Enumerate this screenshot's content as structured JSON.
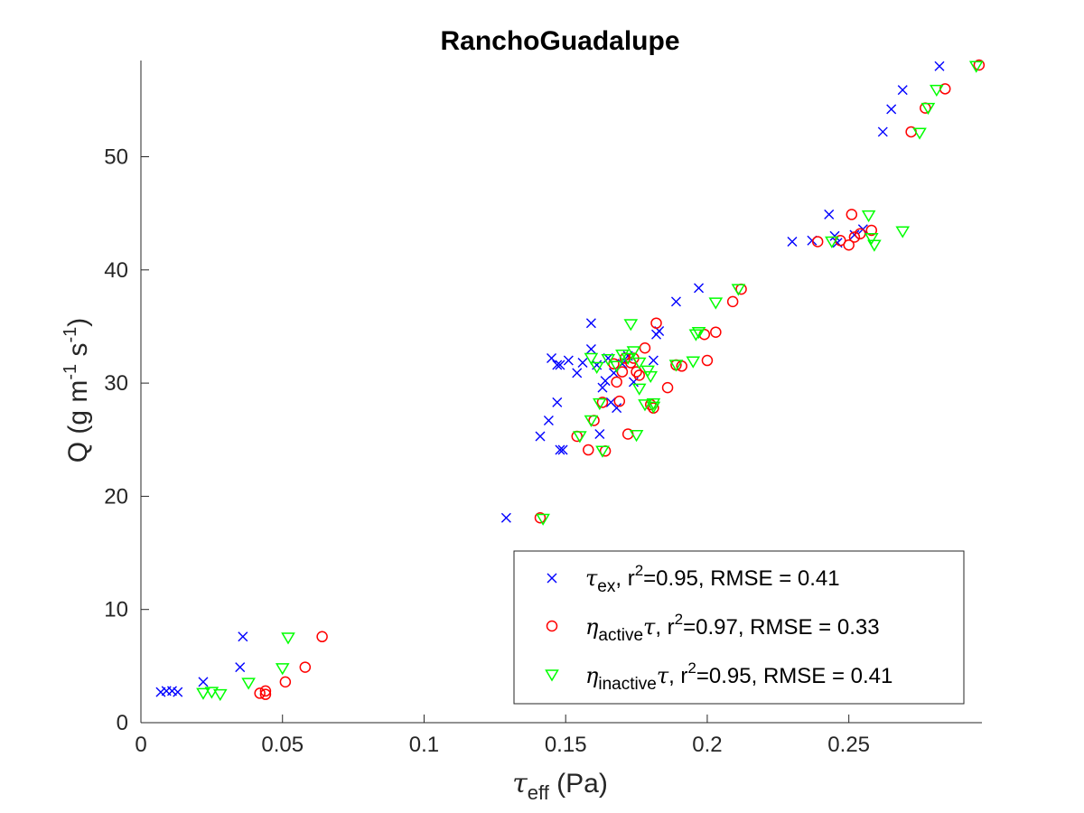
{
  "chart_data": {
    "type": "scatter",
    "title": "RanchoGuadalupe",
    "xlabel": {
      "symbol": "τ",
      "sub": "eff",
      "unit": " (Pa)"
    },
    "ylabel": {
      "pre": "Q (g m",
      "sup1": "-1",
      "mid": " s",
      "sup2": "-1",
      "post": ")"
    },
    "xlim": [
      0,
      0.297
    ],
    "ylim": [
      0,
      58.5
    ],
    "xticks": [
      0,
      0.05,
      0.1,
      0.15,
      0.2,
      0.25
    ],
    "xtick_labels": [
      "0",
      "0.05",
      "0.1",
      "0.15",
      "0.2",
      "0.25"
    ],
    "yticks": [
      0,
      10,
      20,
      30,
      40,
      50
    ],
    "ytick_labels": [
      "0",
      "10",
      "20",
      "30",
      "40",
      "50"
    ],
    "legend_position": "bottom-right",
    "series": [
      {
        "marker": "x",
        "color": "#0000ff",
        "legend": {
          "symbol": "τ",
          "sub": "ex",
          "text1": ", r",
          "sup": "2",
          "text2": "=0.95, RMSE = 0.41"
        },
        "points": [
          [
            0.007,
            2.7
          ],
          [
            0.009,
            2.8
          ],
          [
            0.011,
            2.8
          ],
          [
            0.013,
            2.7
          ],
          [
            0.022,
            3.6
          ],
          [
            0.035,
            4.9
          ],
          [
            0.036,
            7.6
          ],
          [
            0.129,
            18.1
          ],
          [
            0.141,
            25.3
          ],
          [
            0.144,
            26.7
          ],
          [
            0.147,
            28.3
          ],
          [
            0.148,
            24.1
          ],
          [
            0.149,
            24.1
          ],
          [
            0.145,
            32.2
          ],
          [
            0.147,
            31.6
          ],
          [
            0.148,
            31.6
          ],
          [
            0.151,
            32.0
          ],
          [
            0.154,
            30.9
          ],
          [
            0.156,
            31.8
          ],
          [
            0.159,
            35.3
          ],
          [
            0.159,
            33.0
          ],
          [
            0.161,
            31.6
          ],
          [
            0.162,
            25.5
          ],
          [
            0.163,
            29.6
          ],
          [
            0.164,
            30.2
          ],
          [
            0.165,
            32.2
          ],
          [
            0.166,
            28.3
          ],
          [
            0.167,
            30.9
          ],
          [
            0.168,
            27.8
          ],
          [
            0.17,
            31.7
          ],
          [
            0.172,
            32.4
          ],
          [
            0.174,
            30.1
          ],
          [
            0.181,
            32.0
          ],
          [
            0.182,
            34.3
          ],
          [
            0.183,
            34.6
          ],
          [
            0.189,
            37.2
          ],
          [
            0.197,
            38.4
          ],
          [
            0.23,
            42.5
          ],
          [
            0.237,
            42.6
          ],
          [
            0.243,
            44.9
          ],
          [
            0.245,
            43.0
          ],
          [
            0.246,
            42.4
          ],
          [
            0.252,
            43.1
          ],
          [
            0.255,
            43.6
          ],
          [
            0.262,
            52.2
          ],
          [
            0.265,
            54.2
          ],
          [
            0.269,
            55.9
          ],
          [
            0.282,
            58.0
          ]
        ]
      },
      {
        "marker": "o",
        "color": "#ff0000",
        "legend": {
          "symbol": "η",
          "sub": "active",
          "after": "τ",
          "text1": ", r",
          "sup": "2",
          "text2": "=0.97, RMSE = 0.33"
        },
        "points": [
          [
            0.042,
            2.6
          ],
          [
            0.044,
            2.8
          ],
          [
            0.044,
            2.5
          ],
          [
            0.051,
            3.6
          ],
          [
            0.058,
            4.9
          ],
          [
            0.064,
            7.6
          ],
          [
            0.141,
            18.1
          ],
          [
            0.154,
            25.3
          ],
          [
            0.158,
            24.1
          ],
          [
            0.16,
            26.7
          ],
          [
            0.163,
            28.3
          ],
          [
            0.164,
            24.0
          ],
          [
            0.167,
            31.7
          ],
          [
            0.168,
            30.1
          ],
          [
            0.169,
            28.4
          ],
          [
            0.17,
            31.0
          ],
          [
            0.171,
            32.2
          ],
          [
            0.172,
            25.5
          ],
          [
            0.173,
            31.8
          ],
          [
            0.174,
            32.2
          ],
          [
            0.175,
            31.0
          ],
          [
            0.176,
            30.7
          ],
          [
            0.178,
            33.1
          ],
          [
            0.18,
            28.1
          ],
          [
            0.181,
            27.8
          ],
          [
            0.182,
            35.3
          ],
          [
            0.186,
            29.6
          ],
          [
            0.189,
            31.6
          ],
          [
            0.191,
            31.5
          ],
          [
            0.199,
            34.3
          ],
          [
            0.2,
            32.0
          ],
          [
            0.203,
            34.5
          ],
          [
            0.209,
            37.2
          ],
          [
            0.212,
            38.3
          ],
          [
            0.239,
            42.5
          ],
          [
            0.247,
            42.6
          ],
          [
            0.25,
            42.2
          ],
          [
            0.251,
            44.9
          ],
          [
            0.252,
            42.9
          ],
          [
            0.254,
            43.2
          ],
          [
            0.258,
            43.5
          ],
          [
            0.272,
            52.2
          ],
          [
            0.277,
            54.3
          ],
          [
            0.284,
            56.0
          ],
          [
            0.296,
            58.1
          ]
        ]
      },
      {
        "marker": "v",
        "color": "#00ff00",
        "legend": {
          "symbol": "η",
          "sub": "inactive",
          "after": "τ",
          "text1": ", r",
          "sup": "2",
          "text2": "=0.95, RMSE = 0.41"
        },
        "points": [
          [
            0.022,
            2.6
          ],
          [
            0.025,
            2.7
          ],
          [
            0.028,
            2.5
          ],
          [
            0.038,
            3.5
          ],
          [
            0.05,
            4.8
          ],
          [
            0.052,
            7.5
          ],
          [
            0.142,
            18.0
          ],
          [
            0.155,
            25.3
          ],
          [
            0.159,
            26.7
          ],
          [
            0.159,
            32.2
          ],
          [
            0.161,
            31.4
          ],
          [
            0.162,
            28.2
          ],
          [
            0.163,
            24.0
          ],
          [
            0.165,
            32.1
          ],
          [
            0.168,
            31.5
          ],
          [
            0.17,
            32.5
          ],
          [
            0.172,
            32.2
          ],
          [
            0.173,
            35.2
          ],
          [
            0.174,
            32.8
          ],
          [
            0.175,
            25.4
          ],
          [
            0.176,
            29.5
          ],
          [
            0.176,
            31.8
          ],
          [
            0.178,
            28.1
          ],
          [
            0.179,
            31.1
          ],
          [
            0.18,
            30.6
          ],
          [
            0.181,
            28.2
          ],
          [
            0.181,
            27.9
          ],
          [
            0.189,
            31.6
          ],
          [
            0.195,
            31.9
          ],
          [
            0.196,
            34.3
          ],
          [
            0.197,
            34.5
          ],
          [
            0.203,
            37.1
          ],
          [
            0.211,
            38.3
          ],
          [
            0.244,
            42.5
          ],
          [
            0.257,
            44.8
          ],
          [
            0.258,
            42.8
          ],
          [
            0.259,
            42.2
          ],
          [
            0.269,
            43.4
          ],
          [
            0.275,
            52.1
          ],
          [
            0.278,
            54.3
          ],
          [
            0.281,
            55.9
          ],
          [
            0.295,
            58.0
          ]
        ]
      }
    ]
  }
}
